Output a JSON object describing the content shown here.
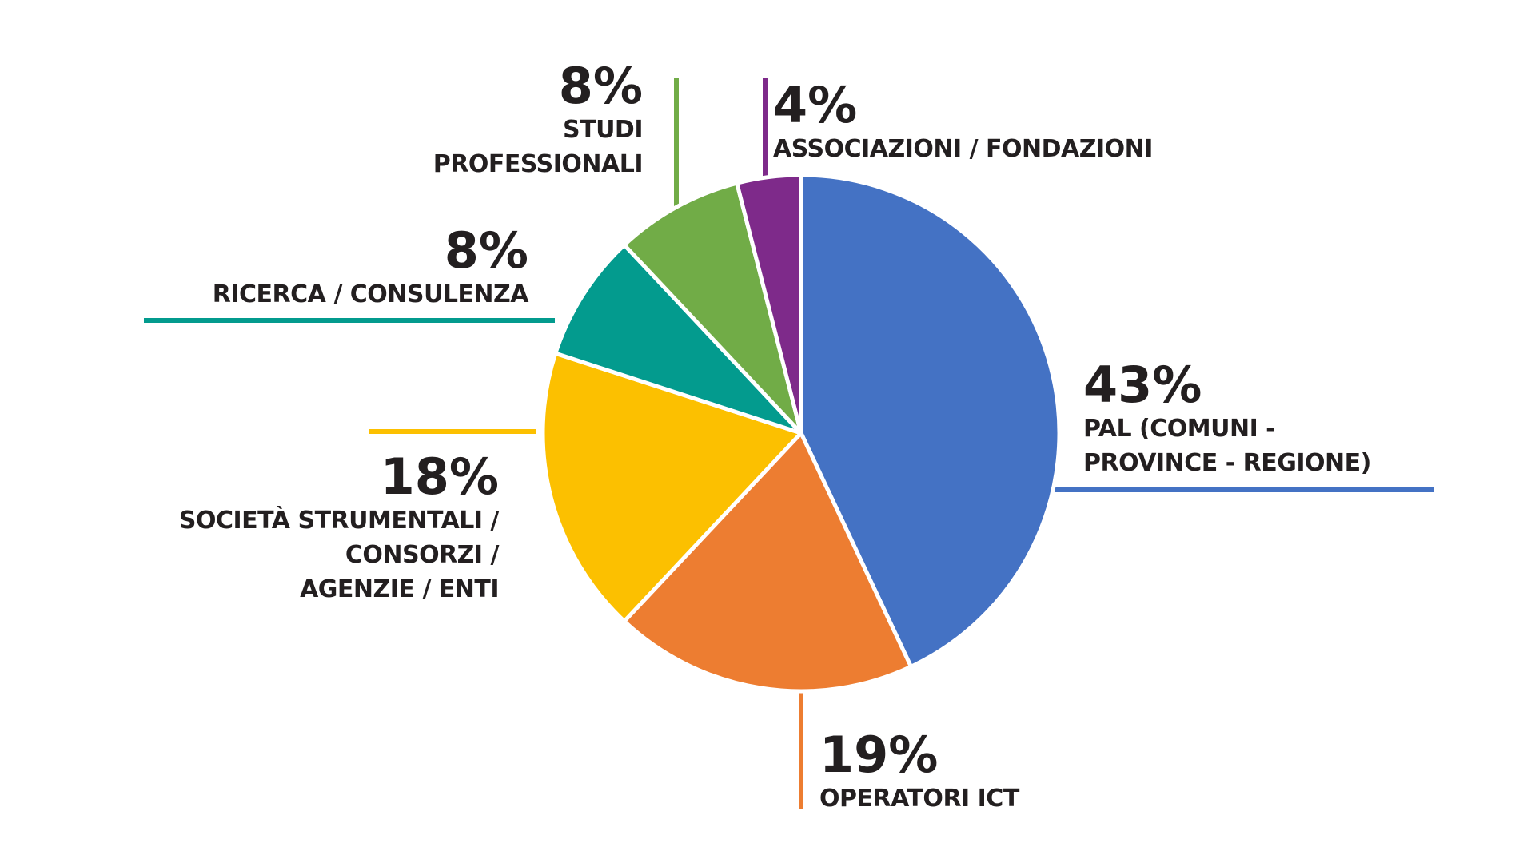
{
  "chart_data": {
    "type": "pie",
    "categories": [
      "PAL (COMUNI -\nPROVINCE - REGIONE)",
      "OPERATORI ICT",
      "SOCIETÀ STRUMENTALI /\nCONSORZI /\nAGENZIE / ENTI",
      "RICERCA  / CONSULENZA",
      "STUDI\nPROFESSIONALI",
      "ASSOCIAZIONI / FONDAZIONI"
    ],
    "values": [
      43,
      19,
      18,
      8,
      8,
      4
    ],
    "value_labels": [
      "43%",
      "19%",
      "18%",
      "8%",
      "8%",
      "4%"
    ],
    "colors": [
      "#4472c4",
      "#ed7d31",
      "#fcc000",
      "#039b8e",
      "#71ac47",
      "#7e2a8a"
    ]
  }
}
